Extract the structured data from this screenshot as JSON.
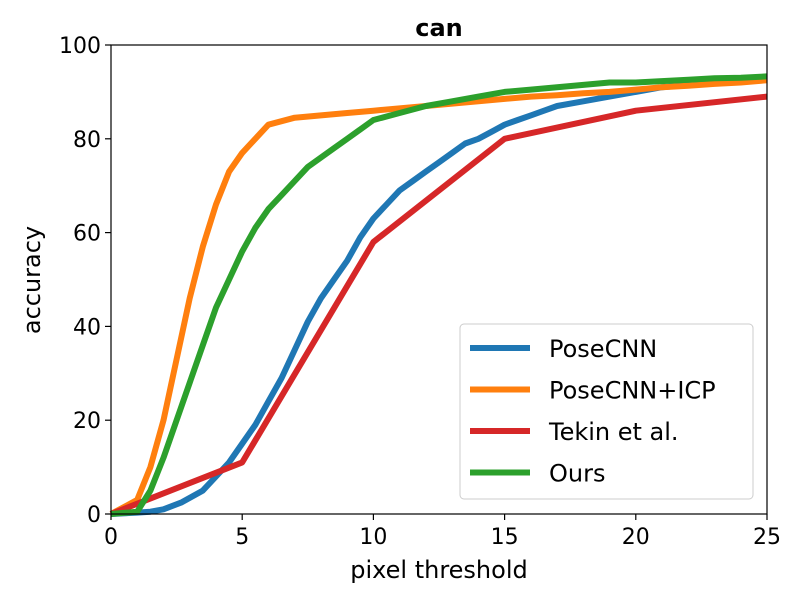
{
  "chart_data": {
    "type": "line",
    "title": "can",
    "xlabel": "pixel threshold",
    "ylabel": "accuracy",
    "xlim": [
      0,
      25
    ],
    "ylim": [
      0,
      100
    ],
    "xticks": [
      "0",
      "5",
      "10",
      "15",
      "20",
      "25"
    ],
    "yticks": [
      "0",
      "20",
      "40",
      "60",
      "80",
      "100"
    ],
    "grid": false,
    "legend_position": "lower-right",
    "series": [
      {
        "name": "PoseCNN",
        "color": "#1f77b4",
        "x": [
          0,
          1,
          1.5,
          2,
          2.7,
          3.5,
          4,
          4.5,
          5,
          5.5,
          6,
          6.5,
          7,
          7.5,
          8,
          8.5,
          9,
          9.5,
          10,
          10.5,
          11,
          11.5,
          12,
          12.5,
          13,
          13.5,
          14,
          14.5,
          15,
          15.5,
          16,
          16.5,
          17,
          18,
          19,
          20,
          21,
          22,
          23,
          24,
          25
        ],
        "y": [
          0,
          0.3,
          0.5,
          1,
          2.5,
          5,
          8,
          11,
          15,
          19,
          24,
          29,
          35,
          41,
          46,
          50,
          54,
          59,
          63,
          66,
          69,
          71,
          73,
          75,
          77,
          79,
          80,
          81.5,
          83,
          84,
          85,
          86,
          87,
          88,
          89,
          90,
          91,
          91.5,
          92,
          92.5,
          93
        ]
      },
      {
        "name": "PoseCNN+ICP",
        "color": "#ff7f0e",
        "x": [
          0,
          1,
          1.5,
          2,
          2.5,
          3,
          3.5,
          4,
          4.5,
          5,
          5.5,
          6,
          7,
          8,
          9,
          10,
          11,
          12,
          13,
          14,
          15,
          16,
          17,
          18,
          19,
          20,
          21,
          22,
          23,
          24,
          25
        ],
        "y": [
          0,
          3,
          10,
          20,
          33,
          46,
          57,
          66,
          73,
          77,
          80,
          83,
          84.5,
          85,
          85.5,
          86,
          86.5,
          87,
          87.5,
          88,
          88.5,
          89,
          89.3,
          89.7,
          90,
          90.5,
          91,
          91.3,
          91.7,
          92,
          92.5
        ]
      },
      {
        "name": "Tekin et al.",
        "color": "#d62728",
        "x": [
          0,
          5,
          10,
          15,
          20,
          25
        ],
        "y": [
          0,
          11,
          58,
          80,
          86,
          89
        ]
      },
      {
        "name": "Ours",
        "color": "#2ca02c",
        "x": [
          0,
          1,
          1.5,
          2,
          2.5,
          3,
          3.5,
          4,
          4.5,
          5,
          5.5,
          6,
          6.5,
          7,
          7.5,
          8,
          8.5,
          9,
          9.5,
          10,
          11,
          12,
          13,
          14,
          15,
          16,
          17,
          18,
          19,
          20,
          21,
          22,
          23,
          24,
          25
        ],
        "y": [
          0,
          0.5,
          5,
          12,
          20,
          28,
          36,
          44,
          50,
          56,
          61,
          65,
          68,
          71,
          74,
          76,
          78,
          80,
          82,
          84,
          85.5,
          87,
          88,
          89,
          90,
          90.5,
          91,
          91.5,
          92,
          92,
          92.3,
          92.6,
          92.9,
          93,
          93.3
        ]
      }
    ]
  }
}
